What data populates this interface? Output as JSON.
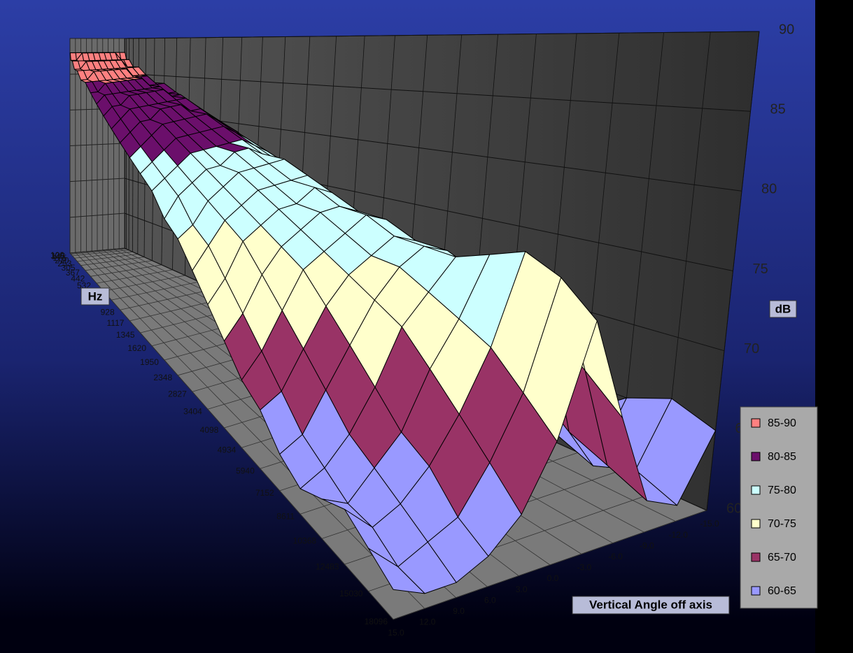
{
  "chart_data": {
    "type": "surface",
    "x_label": "Vertical Angle off axis",
    "y_label": "Hz",
    "z_label": "dB",
    "categories": [
      "100",
      "120",
      "145",
      "175",
      "210",
      "253",
      "305",
      "367",
      "442",
      "532",
      "640",
      "771",
      "928",
      "1117",
      "1345",
      "1620",
      "1950",
      "2348",
      "2827",
      "3404",
      "4098",
      "4934",
      "5940",
      "7152",
      "8611",
      "10368",
      "12483",
      "15030",
      "18096"
    ],
    "x": [
      15,
      12,
      9,
      6,
      3,
      0,
      -3,
      -6,
      -9,
      -12,
      -15
    ],
    "xlim": [
      15,
      -15
    ],
    "xticks": [
      {
        "value": 15,
        "label": "15.0"
      },
      {
        "value": 12,
        "label": "12.0"
      },
      {
        "value": 9,
        "label": "9.0"
      },
      {
        "value": 6,
        "label": "6.0"
      },
      {
        "value": 3,
        "label": "3.0"
      },
      {
        "value": 0,
        "label": "0.0"
      },
      {
        "value": -3,
        "label": "-3.0"
      },
      {
        "value": -6,
        "label": "-6.0"
      },
      {
        "value": -9,
        "label": "-9.0"
      },
      {
        "value": -12,
        "label": "-12.0"
      },
      {
        "value": -15,
        "label": "-15.0"
      }
    ],
    "zlim": [
      60,
      90
    ],
    "zticks": [
      60,
      65,
      70,
      75,
      80,
      85,
      90
    ],
    "bands": [
      {
        "name": "85-90",
        "color": "#ff8080"
      },
      {
        "name": "80-85",
        "color": "#6b0f6b"
      },
      {
        "name": "75-80",
        "color": "#ccffff"
      },
      {
        "name": "70-75",
        "color": "#ffffcc"
      },
      {
        "name": "65-70",
        "color": "#993366"
      },
      {
        "name": "60-65",
        "color": "#9999ff"
      }
    ],
    "values": [
      [
        88,
        88,
        88,
        88,
        88,
        88,
        88,
        88,
        88,
        88,
        88
      ],
      [
        88,
        88,
        88,
        88,
        88,
        88,
        88,
        88,
        88,
        88,
        88
      ],
      [
        87,
        87,
        88,
        88,
        88,
        88,
        88,
        88,
        88,
        87,
        87
      ],
      [
        87,
        87,
        87,
        87,
        87,
        87,
        87,
        87,
        87,
        87,
        87
      ],
      [
        86,
        86,
        87,
        87,
        87,
        87,
        87,
        87,
        87,
        86,
        86
      ],
      [
        86,
        86,
        86,
        86,
        86,
        86,
        86,
        86,
        86,
        86,
        86
      ],
      [
        85,
        85,
        86,
        86,
        86,
        86,
        86,
        86,
        85,
        85,
        85
      ],
      [
        85,
        85,
        85,
        85,
        85,
        85,
        85,
        85,
        85,
        85,
        84
      ],
      [
        84,
        84,
        85,
        85,
        85,
        85,
        85,
        85,
        84,
        84,
        84
      ],
      [
        83,
        84,
        84,
        84,
        84,
        84,
        84,
        84,
        84,
        83,
        83
      ],
      [
        82,
        83,
        83,
        84,
        84,
        84,
        84,
        84,
        83,
        83,
        82
      ],
      [
        81,
        82,
        83,
        83,
        83,
        83,
        83,
        83,
        83,
        82,
        81
      ],
      [
        80,
        81,
        82,
        82,
        83,
        83,
        83,
        82,
        82,
        81,
        80
      ],
      [
        79,
        80,
        81,
        82,
        82,
        82,
        82,
        82,
        81,
        80,
        79
      ],
      [
        78,
        79,
        80,
        81,
        81,
        81,
        81,
        81,
        80,
        79,
        77
      ],
      [
        77,
        78,
        79,
        80,
        80,
        80,
        80,
        80,
        79,
        78,
        76
      ],
      [
        75,
        77,
        78,
        79,
        79,
        80,
        80,
        79,
        78,
        77,
        75
      ],
      [
        74,
        75,
        77,
        78,
        79,
        79,
        79,
        79,
        77,
        75,
        73
      ],
      [
        72,
        74,
        76,
        77,
        78,
        78,
        78,
        78,
        76,
        74,
        71
      ],
      [
        70,
        72,
        75,
        76,
        77,
        77,
        78,
        77,
        75,
        72,
        69
      ],
      [
        68,
        70,
        73,
        75,
        76,
        77,
        77,
        76,
        74,
        70,
        67
      ],
      [
        66,
        68,
        71,
        74,
        75,
        76,
        77,
        76,
        73,
        68,
        66
      ],
      [
        65,
        66,
        69,
        72,
        74,
        75,
        76,
        75,
        71,
        66,
        64
      ],
      [
        63,
        64,
        67,
        70,
        73,
        75,
        76,
        75,
        69,
        64,
        63
      ],
      [
        62,
        63,
        65,
        68,
        72,
        74,
        76,
        74,
        67,
        63,
        62
      ],
      [
        63,
        62,
        64,
        66,
        70,
        73,
        77,
        73,
        66,
        62,
        63
      ],
      [
        64,
        62,
        63,
        65,
        68,
        72,
        78,
        72,
        64,
        61,
        65
      ],
      [
        63,
        61,
        62,
        63,
        66,
        70,
        77,
        70,
        63,
        62,
        66
      ],
      [
        62,
        61,
        61,
        62,
        64,
        68,
        75,
        68,
        62,
        61,
        65
      ]
    ]
  }
}
